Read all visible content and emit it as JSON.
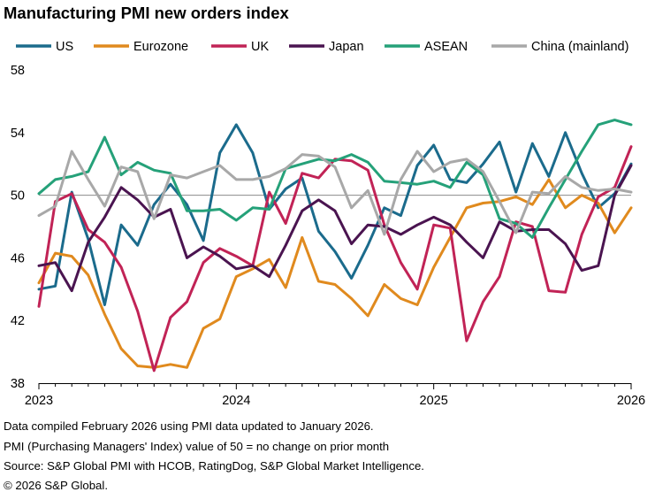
{
  "title": "Manufacturing PMI new orders index",
  "footnotes": [
    "Data compiled February 2026 using PMI data updated to January 2026.",
    "PMI (Purchasing Managers' Index) value of 50 = no change on prior month",
    "Source: S&P Global PMI with HCOB, RatingDog, S&P Global Market Intelligence.",
    "© 2026 S&P Global."
  ],
  "chart_data": {
    "type": "line",
    "title": "Manufacturing PMI new orders index",
    "xlabel": "",
    "ylabel": "",
    "ylim": [
      38,
      58
    ],
    "yticks": [
      38,
      42,
      46,
      50,
      54,
      58
    ],
    "xlim": [
      "2023-01",
      "2026-01"
    ],
    "xticks": [
      {
        "date": "2023-01",
        "label": "2023"
      },
      {
        "date": "2024-01",
        "label": "2024"
      },
      {
        "date": "2025-01",
        "label": "2025"
      },
      {
        "date": "2026-01",
        "label": "2026"
      }
    ],
    "reference_line": 50,
    "grid": false,
    "legend_position": "top",
    "x": [
      "2023-01",
      "2023-02",
      "2023-03",
      "2023-04",
      "2023-05",
      "2023-06",
      "2023-07",
      "2023-08",
      "2023-09",
      "2023-10",
      "2023-11",
      "2023-12",
      "2024-01",
      "2024-02",
      "2024-03",
      "2024-04",
      "2024-05",
      "2024-06",
      "2024-07",
      "2024-08",
      "2024-09",
      "2024-10",
      "2024-11",
      "2024-12",
      "2025-01",
      "2025-02",
      "2025-03",
      "2025-04",
      "2025-05",
      "2025-06",
      "2025-07",
      "2025-08",
      "2025-09",
      "2025-10",
      "2025-11",
      "2025-12",
      "2026-01"
    ],
    "series": [
      {
        "name": "US",
        "color": "#1b6b8c",
        "values": [
          44.0,
          44.2,
          50.2,
          47.2,
          43.0,
          48.1,
          46.8,
          49.4,
          50.7,
          49.4,
          47.1,
          52.7,
          54.5,
          52.7,
          49.1,
          50.4,
          51.1,
          47.7,
          46.4,
          44.7,
          46.8,
          49.2,
          48.7,
          51.9,
          53.2,
          51.0,
          50.8,
          52.0,
          53.4,
          50.2,
          53.3,
          51.2,
          54.0,
          51.4,
          49.2,
          50.1,
          52.0
        ]
      },
      {
        "name": "Eurozone",
        "color": "#e08a1e",
        "values": [
          44.4,
          46.3,
          46.1,
          44.9,
          42.4,
          40.2,
          39.1,
          39.0,
          39.2,
          39.0,
          41.5,
          42.1,
          44.8,
          45.3,
          45.9,
          44.1,
          47.3,
          44.5,
          44.3,
          43.4,
          42.3,
          44.3,
          43.4,
          43.0,
          45.4,
          47.3,
          49.2,
          49.5,
          49.6,
          49.9,
          49.4,
          51.0,
          49.2,
          50.0,
          49.5,
          47.6,
          49.2
        ]
      },
      {
        "name": "UK",
        "color": "#c12356",
        "values": [
          42.9,
          49.6,
          50.1,
          47.8,
          47.0,
          45.4,
          42.6,
          38.8,
          42.2,
          43.2,
          45.7,
          46.6,
          46.1,
          45.5,
          50.2,
          48.2,
          51.4,
          51.1,
          52.3,
          52.2,
          51.6,
          48.1,
          45.7,
          44.0,
          48.1,
          47.9,
          40.7,
          43.2,
          44.8,
          48.3,
          48.0,
          43.9,
          43.8,
          47.5,
          49.9,
          50.5,
          53.1
        ]
      },
      {
        "name": "Japan",
        "color": "#4a1450",
        "values": [
          45.5,
          45.7,
          43.9,
          47.0,
          48.6,
          50.5,
          49.7,
          48.6,
          49.1,
          46.0,
          46.7,
          46.1,
          45.3,
          45.5,
          44.8,
          46.8,
          49.0,
          49.7,
          49.0,
          46.9,
          48.1,
          48.0,
          47.5,
          48.1,
          48.6,
          48.1,
          47.0,
          46.0,
          48.3,
          47.7,
          47.8,
          47.8,
          46.9,
          45.2,
          45.5,
          50.0,
          51.9
        ]
      },
      {
        "name": "ASEAN",
        "color": "#25a179",
        "values": [
          50.1,
          51.0,
          51.2,
          51.5,
          53.7,
          51.3,
          52.1,
          51.6,
          51.4,
          49.0,
          49.0,
          49.1,
          48.4,
          49.2,
          49.1,
          51.7,
          52.0,
          52.3,
          52.2,
          52.6,
          52.1,
          50.9,
          50.8,
          50.7,
          50.9,
          50.5,
          52.1,
          51.3,
          48.5,
          48.2,
          47.3,
          49.2,
          51.0,
          52.8,
          54.5,
          54.8,
          54.5
        ]
      },
      {
        "name": "China (mainland)",
        "color": "#a8a8a8",
        "values": [
          48.7,
          49.3,
          52.8,
          51.0,
          49.3,
          51.8,
          51.5,
          48.5,
          51.3,
          51.1,
          51.5,
          51.9,
          51.0,
          51.0,
          51.2,
          51.7,
          52.6,
          52.5,
          51.8,
          49.2,
          50.3,
          47.5,
          51.0,
          52.8,
          51.5,
          52.1,
          52.3,
          51.5,
          49.6,
          47.6,
          50.2,
          50.1,
          51.2,
          50.5,
          50.3,
          50.4,
          50.2
        ]
      }
    ]
  }
}
